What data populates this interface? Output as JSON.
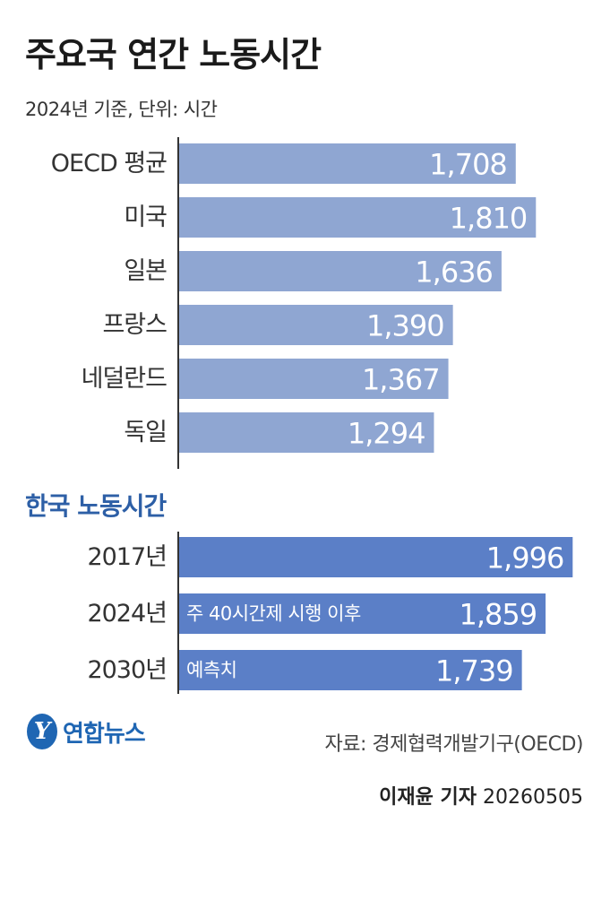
{
  "title": "주요국 연간 노동시간",
  "subtitle": "2024년 기준, 단위: 시간",
  "colors": {
    "main_bar": "#8fa6d2",
    "korea_bar": "#5b7fc7",
    "axis": "#333333",
    "section": "#2d5fa6",
    "brand": "#1f66b3"
  },
  "chart_data": [
    {
      "type": "bar",
      "orientation": "horizontal",
      "categories": [
        "OECD 평균",
        "미국",
        "일본",
        "프랑스",
        "네덜란드",
        "독일"
      ],
      "values": [
        1708,
        1810,
        1636,
        1390,
        1367,
        1294
      ],
      "value_labels": [
        "1,708",
        "1,810",
        "1,636",
        "1,390",
        "1,367",
        "1,294"
      ]
    },
    {
      "type": "bar",
      "orientation": "horizontal",
      "title": "한국 노동시간",
      "categories": [
        "2017년",
        "2024년",
        "2030년"
      ],
      "values": [
        1996,
        1859,
        1739
      ],
      "value_labels": [
        "1,996",
        "1,859",
        "1,739"
      ],
      "annotations": [
        "",
        "주 40시간제 시행 이후",
        "예측치"
      ]
    }
  ],
  "logo": {
    "mark": "Y",
    "text": "연합뉴스"
  },
  "source": "자료: 경제협력개발기구(OECD)",
  "credit": {
    "reporter": "이재윤 기자",
    "date": "20260505"
  }
}
